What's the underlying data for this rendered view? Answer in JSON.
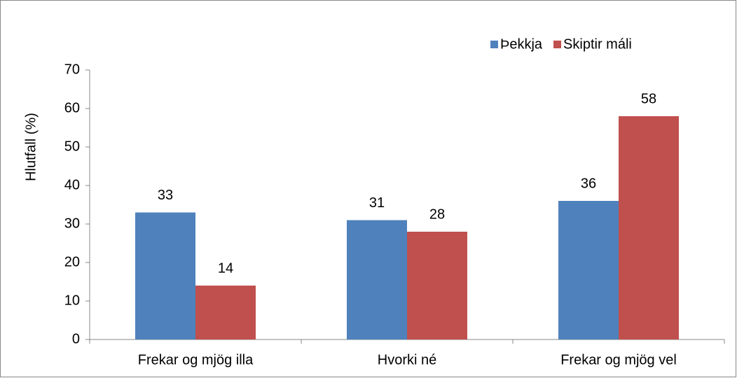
{
  "chart_data": {
    "type": "bar",
    "y_label": "Hlutfall (%)",
    "categories": [
      "Frekar og mjög illa",
      "Hvorki né",
      "Frekar og mjög vel"
    ],
    "series": [
      {
        "name": "Þekkja",
        "color": "#4f81bd",
        "values": [
          33,
          31,
          36
        ]
      },
      {
        "name": "Skiptir máli",
        "color": "#c0504d",
        "values": [
          14,
          28,
          58
        ]
      }
    ],
    "ylim": [
      0,
      70
    ],
    "yticks": [
      0,
      10,
      20,
      30,
      40,
      50,
      60,
      70
    ],
    "grid": false,
    "legend": "top-right"
  }
}
